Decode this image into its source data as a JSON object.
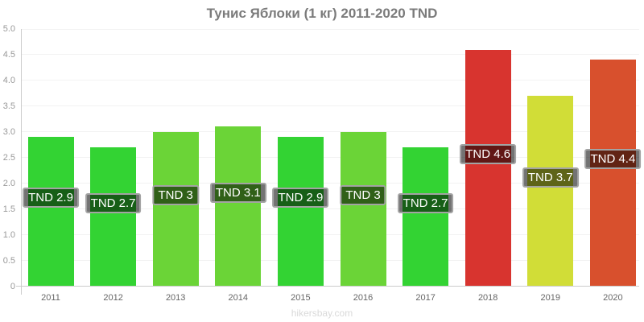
{
  "page": {
    "footer": "hikersbay.com"
  },
  "colors": {
    "axis": "#cccccc",
    "grid": "#f2f2f2",
    "y_tick_label": "#999999",
    "x_tick_label": "#666666",
    "title": "#7b7b7b",
    "footer": "#d9d9d9",
    "bar_label_text": "#ffffff",
    "bar_label_border": "#a3a3a3",
    "green": "#33d333",
    "light_green": "#6bd437",
    "red": "#d8342f",
    "yellow_green": "#d1dd37",
    "orange": "#d8502d"
  },
  "chart_data": {
    "type": "bar",
    "title": "Тунис Яблоки (1 кг) 2011-2020 TND",
    "xlabel": "",
    "ylabel": "",
    "currency": "TND",
    "categories": [
      "2011",
      "2012",
      "2013",
      "2014",
      "2015",
      "2016",
      "2017",
      "2018",
      "2019",
      "2020"
    ],
    "values": [
      2.9,
      2.7,
      3.0,
      3.1,
      2.9,
      3.0,
      2.7,
      4.6,
      3.7,
      4.4
    ],
    "bar_labels": [
      "TND 2.9",
      "TND 2.7",
      "TND 3",
      "TND 3.1",
      "TND 2.9",
      "TND 3",
      "TND 2.7",
      "TND 4.6",
      "TND 3.7",
      "TND 4.4"
    ],
    "bar_colors": [
      "#33d333",
      "#33d333",
      "#6bd437",
      "#6bd437",
      "#33d333",
      "#6bd437",
      "#33d333",
      "#d8342f",
      "#d1dd37",
      "#d8502d"
    ],
    "ylim": [
      0,
      5.0
    ],
    "ytick_step": 0.5,
    "yticks": [
      "0",
      "0.5",
      "1.0",
      "1.5",
      "2.0",
      "2.5",
      "3.0",
      "3.5",
      "4.0",
      "4.5",
      "5.0"
    ],
    "grid": true,
    "legend": "none"
  }
}
